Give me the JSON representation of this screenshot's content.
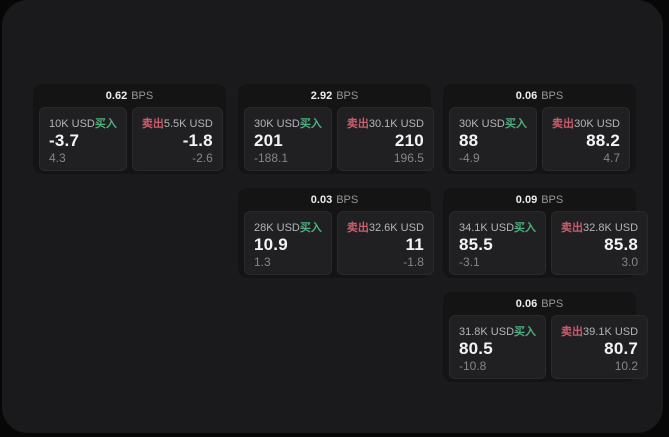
{
  "shared": {
    "buy_label": "买入",
    "sell_label": "卖出",
    "bps_unit": "BPS"
  },
  "colors": {
    "buy_green": "#4caf7d",
    "sell_red": "#c85d6b",
    "panel_bg": "#1a1a1c",
    "card_bg": "#141415",
    "tile_bg": "#202023",
    "page_bg": "#070708"
  },
  "cards": [
    {
      "col": 1,
      "row": 1,
      "bps": "0.62",
      "buy": {
        "size": "10K USD",
        "price": "-3.7",
        "delta": "4.3"
      },
      "sell": {
        "size": "5.5K USD",
        "price": "-1.8",
        "delta": "-2.6"
      }
    },
    {
      "col": 2,
      "row": 1,
      "bps": "2.92",
      "buy": {
        "size": "30K USD",
        "price": "201",
        "delta": "-188.1"
      },
      "sell": {
        "size": "30.1K USD",
        "price": "210",
        "delta": "196.5"
      }
    },
    {
      "col": 3,
      "row": 1,
      "bps": "0.06",
      "buy": {
        "size": "30K USD",
        "price": "88",
        "delta": "-4.9"
      },
      "sell": {
        "size": "30K USD",
        "price": "88.2",
        "delta": "4.7"
      }
    },
    {
      "col": 2,
      "row": 2,
      "bps": "0.03",
      "buy": {
        "size": "28K USD",
        "price": "10.9",
        "delta": "1.3"
      },
      "sell": {
        "size": "32.6K USD",
        "price": "11",
        "delta": "-1.8"
      }
    },
    {
      "col": 3,
      "row": 2,
      "bps": "0.09",
      "buy": {
        "size": "34.1K USD",
        "price": "85.5",
        "delta": "-3.1"
      },
      "sell": {
        "size": "32.8K USD",
        "price": "85.8",
        "delta": "3.0"
      }
    },
    {
      "col": 3,
      "row": 3,
      "bps": "0.06",
      "buy": {
        "size": "31.8K USD",
        "price": "80.5",
        "delta": "-10.8"
      },
      "sell": {
        "size": "39.1K USD",
        "price": "80.7",
        "delta": "10.2"
      }
    }
  ]
}
